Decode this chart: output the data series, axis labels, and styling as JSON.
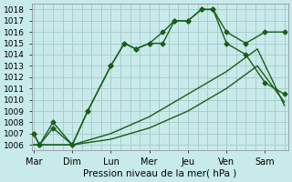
{
  "background_color": "#c8eaea",
  "grid_color": "#aacece",
  "line_color": "#1a5c1a",
  "title": "Pression niveau de la mer( hPa )",
  "ylim": [
    1005.5,
    1018.5
  ],
  "yticks": [
    1006,
    1007,
    1008,
    1009,
    1010,
    1011,
    1012,
    1013,
    1014,
    1015,
    1016,
    1017,
    1018
  ],
  "x_labels": [
    "Mar",
    "Dim",
    "Lun",
    "Mer",
    "Jeu",
    "Ven",
    "Sam"
  ],
  "x_tick_positions": [
    0,
    1,
    2,
    3,
    4,
    5,
    6
  ],
  "xlim": [
    -0.05,
    6.6
  ],
  "series": [
    {
      "x": [
        0.0,
        0.15,
        0.5,
        1.0,
        1.4,
        2.0,
        2.35,
        2.65,
        3.0,
        3.35,
        3.65,
        4.0,
        4.35,
        4.65,
        5.0,
        5.5,
        6.0,
        6.5
      ],
      "y": [
        1007,
        1006,
        1008,
        1006,
        1009,
        1013,
        1015,
        1014.5,
        1015,
        1015,
        1017,
        1017,
        1018,
        1018,
        1016,
        1015,
        1016,
        1016
      ],
      "marker": "D",
      "markersize": 2.5,
      "linewidth": 1.0
    },
    {
      "x": [
        0.0,
        0.15,
        0.5,
        1.0,
        1.4,
        2.0,
        2.35,
        2.65,
        3.0,
        3.35,
        3.65,
        4.0,
        4.35,
        4.65,
        5.0,
        5.5,
        6.0,
        6.5
      ],
      "y": [
        1007,
        1006,
        1007.5,
        1006,
        1009,
        1013,
        1015,
        1014.5,
        1015,
        1016,
        1017,
        1017,
        1018,
        1018,
        1015,
        1014,
        1011.5,
        1010.5
      ],
      "marker": "D",
      "markersize": 2.5,
      "linewidth": 1.0
    },
    {
      "x": [
        0.0,
        1.0,
        2.0,
        3.0,
        4.0,
        5.0,
        5.8,
        6.5
      ],
      "y": [
        1006,
        1006,
        1007,
        1008.5,
        1010.5,
        1012.5,
        1014.5,
        1009.5
      ],
      "marker": null,
      "markersize": 0,
      "linewidth": 1.0
    },
    {
      "x": [
        0.0,
        1.0,
        2.0,
        3.0,
        4.0,
        5.0,
        5.8,
        6.5
      ],
      "y": [
        1006,
        1006,
        1006.5,
        1007.5,
        1009,
        1011,
        1013,
        1009.8
      ],
      "marker": null,
      "markersize": 0,
      "linewidth": 1.0
    }
  ]
}
